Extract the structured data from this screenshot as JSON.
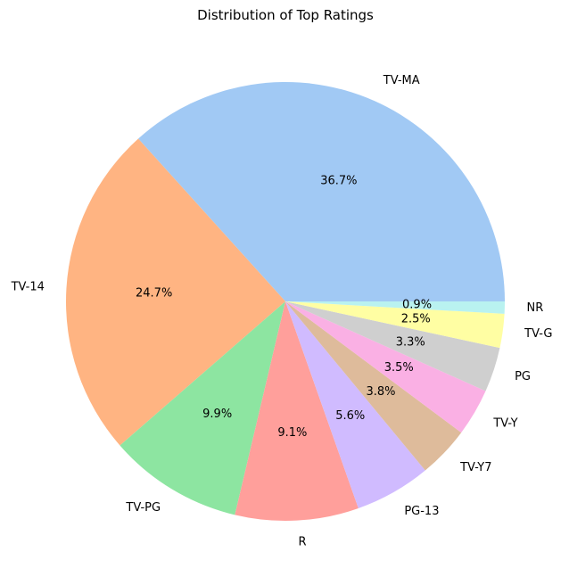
{
  "chart_data": {
    "type": "pie",
    "title": "Distribution of Top Ratings",
    "start_angle": 0,
    "direction": "counterclockwise",
    "slices": [
      {
        "label": "TV-MA",
        "value": 36.7,
        "pct_text": "36.7%",
        "color": "#a1c9f4"
      },
      {
        "label": "TV-14",
        "value": 24.7,
        "pct_text": "24.7%",
        "color": "#ffb482"
      },
      {
        "label": "TV-PG",
        "value": 9.9,
        "pct_text": "9.9%",
        "color": "#8de5a1"
      },
      {
        "label": "R",
        "value": 9.1,
        "pct_text": "9.1%",
        "color": "#ff9f9b"
      },
      {
        "label": "PG-13",
        "value": 5.6,
        "pct_text": "5.6%",
        "color": "#d0bbff"
      },
      {
        "label": "TV-Y7",
        "value": 3.8,
        "pct_text": "3.8%",
        "color": "#debb9b"
      },
      {
        "label": "TV-Y",
        "value": 3.5,
        "pct_text": "3.5%",
        "color": "#fab0e4"
      },
      {
        "label": "PG",
        "value": 3.3,
        "pct_text": "3.3%",
        "color": "#cfcfcf"
      },
      {
        "label": "TV-G",
        "value": 2.5,
        "pct_text": "2.5%",
        "color": "#fffea3"
      },
      {
        "label": "NR",
        "value": 0.9,
        "pct_text": "0.9%",
        "color": "#b9f2f0"
      }
    ]
  }
}
